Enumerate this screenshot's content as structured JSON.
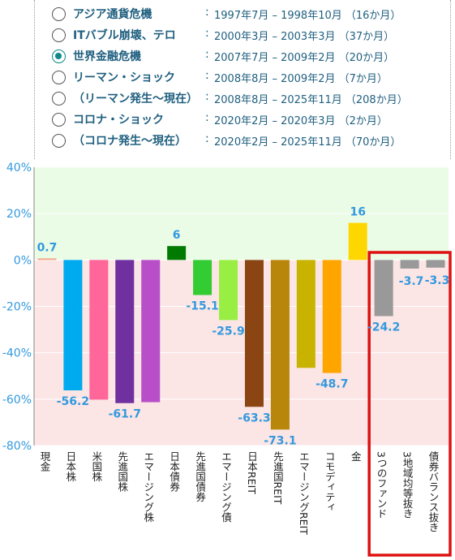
{
  "crisis_selector": [
    {
      "label": "アジア通貨危機",
      "period": "1997年7月 – 1998年10月 （16か月）",
      "selected": false
    },
    {
      "label": "ITバブル崩壊、テロ",
      "period": "2000年3月 – 2003年3月 （37か月）",
      "selected": false
    },
    {
      "label": "世界金融危機",
      "period": "2007年7月 – 2009年2月 （20か月）",
      "selected": true
    },
    {
      "label": "リーマン・ショック",
      "period": "2008年8月 – 2009年2月 （7か月）",
      "selected": false
    },
    {
      "label": "（リーマン発生～現在）",
      "period": "2008年8月 – 2025年11月 （208か月）",
      "selected": false
    },
    {
      "label": "コロナ・ショック",
      "period": "2020年2月 – 2020年3月 （2か月）",
      "selected": false
    },
    {
      "label": "（コロナ発生～現在）",
      "period": "2020年2月 – 2025年11月 （70か月）",
      "selected": false
    }
  ],
  "separator": ":",
  "chart_data": {
    "type": "bar",
    "categories": [
      "現金",
      "日本株",
      "米国株",
      "先進国株",
      "エマージング株",
      "日本債券",
      "先進国債券",
      "エマージング債",
      "日本REIT",
      "先進国REIT",
      "エマージングREIT",
      "コモディティ",
      "金",
      "3つのファンド",
      "3地域均等抜き",
      "債券バランス抜き"
    ],
    "values": [
      0.7,
      -56.2,
      -60.2,
      -61.7,
      -61.3,
      6,
      -15.1,
      -25.9,
      -63.3,
      -73.1,
      -46.5,
      -48.7,
      16,
      -24.2,
      -3.7,
      -3.3
    ],
    "labels": [
      "0.7",
      "-56.2",
      "",
      "-61.7",
      "",
      "6",
      "-15.1",
      "-25.9",
      "-63.3",
      "-73.1",
      "",
      "-48.7",
      "16",
      "-24.2",
      "-3.7",
      "-3.3"
    ],
    "colors": [
      "#f4a88a",
      "#00aaee",
      "#ff6699",
      "#7030a0",
      "#b84fc8",
      "#007a00",
      "#33cc33",
      "#99ee44",
      "#8b4513",
      "#b8860b",
      "#c8b400",
      "#ffa500",
      "#ffd700",
      "#999999",
      "#999999",
      "#999999"
    ],
    "yticks": [
      "40%",
      "20%",
      "0%",
      "-20%",
      "-40%",
      "-60%",
      "-80%"
    ],
    "ylim": [
      -80,
      40
    ],
    "grid": true,
    "positive_region_color": "#eafbe6",
    "negative_region_color": "#fbe5e5",
    "label_color": "#3399dd",
    "highlight_categories": [
      "3つのファンド",
      "3地域均等抜き",
      "債券バランス抜き"
    ],
    "highlight_color": "#dd1111"
  }
}
